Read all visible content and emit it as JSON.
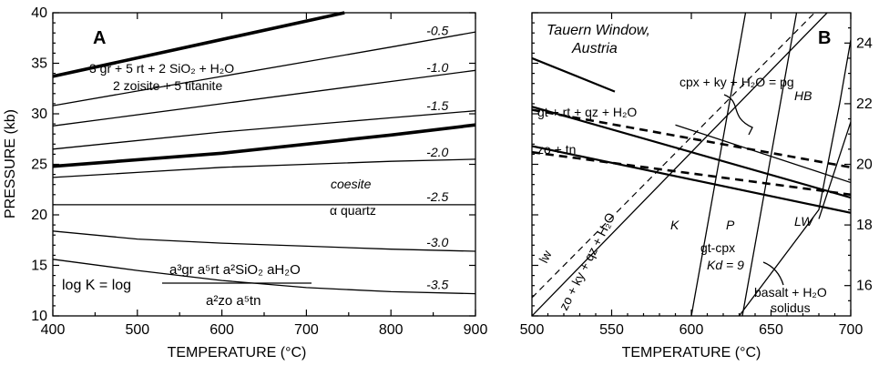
{
  "chart_data": [
    {
      "type": "line",
      "panel_label": "A",
      "xlabel": "TEMPERATURE (°C)",
      "ylabel": "PRESSURE (kb)",
      "xlim": [
        400,
        900
      ],
      "ylim": [
        10,
        40
      ],
      "xticks": [
        "400",
        "500",
        "600",
        "700",
        "800",
        "900"
      ],
      "yticks": [
        "10",
        "15",
        "20",
        "25",
        "30",
        "35",
        "40"
      ],
      "reaction": {
        "line1": "3 gr + 5 rt + 2 SiO₂ + H₂O",
        "line2": "2 zoisite + 5 titanite"
      },
      "quartz_coesite": {
        "upper": "coesite",
        "lower": "α quartz"
      },
      "equation": {
        "lhs": "log K = log",
        "numerator": "a³gr a⁵rt a²SiO₂ aH₂O",
        "denominator": "a²zo a⁵tn"
      },
      "series": [
        {
          "name": "reaction log K = 0",
          "x": [
            400,
            745
          ],
          "y": [
            33.7,
            40
          ]
        },
        {
          "name": "-0.5",
          "x": [
            400,
            600,
            800,
            900
          ],
          "y": [
            30.8,
            33.7,
            36.6,
            38.1
          ]
        },
        {
          "name": "-1.0",
          "x": [
            400,
            600,
            800,
            900
          ],
          "y": [
            28.8,
            31.0,
            33.2,
            34.3
          ]
        },
        {
          "name": "-1.5",
          "x": [
            400,
            600,
            800,
            900
          ],
          "y": [
            26.5,
            28.2,
            29.6,
            30.3
          ]
        },
        {
          "name": "coesite / α quartz",
          "x": [
            400,
            600,
            800,
            900
          ],
          "y": [
            24.8,
            26.1,
            27.9,
            28.9
          ]
        },
        {
          "name": "-2.0",
          "x": [
            400,
            500,
            600,
            700,
            800,
            900
          ],
          "y": [
            23.7,
            24.2,
            24.7,
            25.0,
            25.3,
            25.5
          ]
        },
        {
          "name": "-2.5",
          "x": [
            400,
            600,
            800,
            900
          ],
          "y": [
            21.0,
            21.0,
            21.0,
            21.0
          ]
        },
        {
          "name": "-3.0",
          "x": [
            400,
            500,
            600,
            700,
            800,
            900
          ],
          "y": [
            18.4,
            17.6,
            17.2,
            16.9,
            16.6,
            16.4
          ]
        },
        {
          "name": "-3.5",
          "x": [
            400,
            500,
            600,
            700,
            800,
            900
          ],
          "y": [
            15.6,
            14.5,
            13.5,
            12.8,
            12.4,
            12.2
          ]
        }
      ],
      "contour_labels": [
        "-0.5",
        "-1.0",
        "-1.5",
        "-2.0",
        "-2.5",
        "-3.0",
        "-3.5"
      ]
    },
    {
      "type": "line",
      "panel_label": "B",
      "title": "Tauern Window, Austria",
      "xlabel": "TEMPERATURE (°C)",
      "xlim": [
        500,
        700
      ],
      "ylim": [
        15,
        25
      ],
      "xticks": [
        "500",
        "550",
        "600",
        "650",
        "700"
      ],
      "yticks": [
        "16",
        "18",
        "20",
        "22",
        "24"
      ],
      "labels": {
        "gt": "gt + rt + qz + H₂O",
        "zo": "zo + tn",
        "lw_react": "zo + ky + qz + H₂O",
        "lw": "lw",
        "pg": "cpx + ky + H₂O = pg",
        "HB": "HB",
        "LW": "LW",
        "K": "K",
        "P": "P",
        "gtcpx_1": "gt-cpx",
        "gtcpx_2": "Kd = 9",
        "solidus_1": "basalt + H₂O",
        "solidus_2": "solidus"
      },
      "series": [
        {
          "name": "zo + ky + qz + H₂O (lw)",
          "x": [
            500,
            700
          ],
          "y": [
            15.0,
            25.8
          ]
        },
        {
          "name": "lw (dashed)",
          "x": [
            500,
            700
          ],
          "y": [
            15.6,
            26.2
          ]
        },
        {
          "name": "gt + rt + qz + H₂O (solid)",
          "x": [
            500,
            700
          ],
          "y": [
            21.9,
            18.9
          ]
        },
        {
          "name": "gt + rt + qz + H₂O (dashed)",
          "x": [
            500,
            700
          ],
          "y": [
            21.8,
            19.9
          ]
        },
        {
          "name": "zo + tn (solid)",
          "x": [
            500,
            700
          ],
          "y": [
            20.6,
            18.4
          ]
        },
        {
          "name": "zo + tn (dashed)",
          "x": [
            500,
            700
          ],
          "y": [
            20.4,
            19.0
          ]
        },
        {
          "name": "upper-left (solid)",
          "x": [
            500,
            552
          ],
          "y": [
            23.5,
            22.4
          ]
        },
        {
          "name": "cpx + ky + H₂O = pg",
          "x": [
            590,
            700
          ],
          "y": [
            21.3,
            19.4
          ]
        },
        {
          "name": "K isotherm",
          "x": [
            600,
            634
          ],
          "y": [
            15.0,
            25.0
          ]
        },
        {
          "name": "P isotherm",
          "x": [
            632,
            666
          ],
          "y": [
            15.0,
            25.0
          ]
        },
        {
          "name": "basalt + H₂O solidus",
          "x": [
            630,
            680,
            693,
            700
          ],
          "y": [
            15.0,
            18.5,
            22.0,
            24.1
          ]
        },
        {
          "name": "HB / LW boundary",
          "x": [
            680,
            700
          ],
          "y": [
            18.2,
            21.4
          ]
        }
      ]
    }
  ]
}
